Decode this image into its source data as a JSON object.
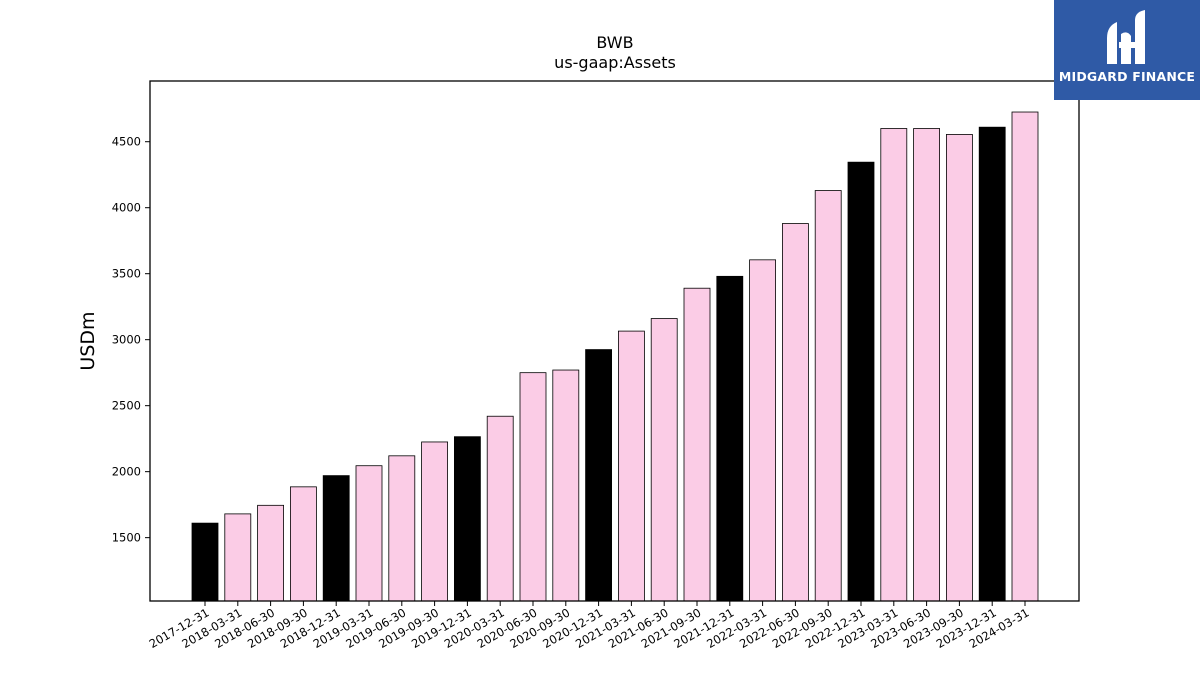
{
  "chart_data": {
    "type": "bar",
    "title": "BWB",
    "subtitle": "us-gaap:Assets",
    "xlabel": "",
    "ylabel": "USDm",
    "ylim": [
      1020,
      4960
    ],
    "yticks": [
      1500,
      2000,
      2500,
      3000,
      3500,
      4000,
      4500
    ],
    "grid": false,
    "categories": [
      "2017-12-31",
      "2018-03-31",
      "2018-06-30",
      "2018-09-30",
      "2018-12-31",
      "2019-03-31",
      "2019-06-30",
      "2019-09-30",
      "2019-12-31",
      "2020-03-31",
      "2020-06-30",
      "2020-09-30",
      "2020-12-31",
      "2021-03-31",
      "2021-06-30",
      "2021-09-30",
      "2021-12-31",
      "2022-03-31",
      "2022-06-30",
      "2022-09-30",
      "2022-12-31",
      "2023-03-31",
      "2023-06-30",
      "2023-09-30",
      "2023-12-31",
      "2024-03-31"
    ],
    "values": [
      1610,
      1680,
      1745,
      1885,
      1970,
      2045,
      2120,
      2225,
      2265,
      2420,
      2750,
      2770,
      2925,
      3065,
      3160,
      3390,
      3480,
      3605,
      3880,
      4130,
      4345,
      4600,
      4600,
      4555,
      4610,
      4725
    ],
    "colors": {
      "year_end": "#000000",
      "quarter": "#fbcce6",
      "edge": "#000000"
    }
  },
  "logo": {
    "text": "MIDGARD FINANCE",
    "icon": "midgard-logo-icon",
    "background": "#2f5aa6"
  }
}
